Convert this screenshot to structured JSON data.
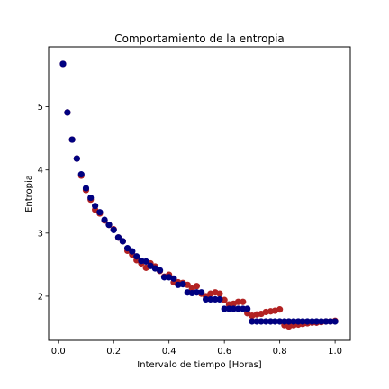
{
  "chart_data": {
    "type": "scatter",
    "title": "Comportamiento de la entropia",
    "xlabel": "Intervalo de tiempo [Horas]",
    "ylabel": "Entropia",
    "xlim": [
      -0.035,
      1.055
    ],
    "ylim": [
      1.3,
      5.95
    ],
    "xticks": [
      {
        "value": 0.0,
        "label": "0.0"
      },
      {
        "value": 0.2,
        "label": "0.2"
      },
      {
        "value": 0.4,
        "label": "0.4"
      },
      {
        "value": 0.6,
        "label": "0.6"
      },
      {
        "value": 0.8,
        "label": "0.8"
      },
      {
        "value": 1.0,
        "label": "1.0"
      }
    ],
    "yticks": [
      {
        "value": 2,
        "label": "2"
      },
      {
        "value": 3,
        "label": "3"
      },
      {
        "value": 4,
        "label": "4"
      },
      {
        "value": 5,
        "label": "5"
      }
    ],
    "grid": false,
    "legend": null,
    "series": [
      {
        "color": "#b22222",
        "x": [
          0.017,
          0.033,
          0.05,
          0.067,
          0.083,
          0.1,
          0.117,
          0.133,
          0.15,
          0.167,
          0.183,
          0.2,
          0.217,
          0.233,
          0.25,
          0.267,
          0.283,
          0.3,
          0.317,
          0.333,
          0.35,
          0.367,
          0.383,
          0.4,
          0.417,
          0.433,
          0.45,
          0.467,
          0.483,
          0.5,
          0.517,
          0.533,
          0.55,
          0.567,
          0.583,
          0.6,
          0.617,
          0.633,
          0.65,
          0.667,
          0.683,
          0.7,
          0.717,
          0.733,
          0.75,
          0.767,
          0.783,
          0.8,
          0.817,
          0.833,
          0.85,
          0.867,
          0.883,
          0.9,
          0.917,
          0.933,
          0.95,
          0.967,
          0.983,
          1.0
        ],
        "values": [
          5.68,
          4.91,
          4.48,
          4.18,
          3.91,
          3.68,
          3.53,
          3.37,
          3.31,
          3.2,
          3.13,
          3.06,
          2.93,
          2.87,
          2.72,
          2.66,
          2.57,
          2.52,
          2.45,
          2.52,
          2.47,
          2.4,
          2.31,
          2.34,
          2.22,
          2.22,
          2.21,
          2.18,
          2.12,
          2.16,
          2.04,
          2.0,
          2.04,
          2.06,
          2.04,
          1.94,
          1.87,
          1.88,
          1.91,
          1.91,
          1.73,
          1.69,
          1.71,
          1.72,
          1.75,
          1.76,
          1.77,
          1.79,
          1.54,
          1.52,
          1.54,
          1.55,
          1.56,
          1.57,
          1.58,
          1.58,
          1.59,
          1.6,
          1.6,
          1.61
        ]
      },
      {
        "color": "#000080",
        "x": [
          0.017,
          0.033,
          0.05,
          0.067,
          0.083,
          0.1,
          0.117,
          0.133,
          0.15,
          0.167,
          0.183,
          0.2,
          0.217,
          0.233,
          0.25,
          0.267,
          0.283,
          0.3,
          0.317,
          0.333,
          0.35,
          0.367,
          0.383,
          0.4,
          0.417,
          0.433,
          0.45,
          0.467,
          0.483,
          0.5,
          0.517,
          0.533,
          0.55,
          0.567,
          0.583,
          0.6,
          0.617,
          0.633,
          0.65,
          0.667,
          0.683,
          0.7,
          0.717,
          0.733,
          0.75,
          0.767,
          0.783,
          0.8,
          0.817,
          0.833,
          0.85,
          0.867,
          0.883,
          0.9,
          0.917,
          0.933,
          0.95,
          0.967,
          0.983,
          1.0
        ],
        "values": [
          5.68,
          4.91,
          4.48,
          4.18,
          3.93,
          3.71,
          3.56,
          3.43,
          3.33,
          3.21,
          3.13,
          3.05,
          2.93,
          2.87,
          2.76,
          2.71,
          2.63,
          2.56,
          2.55,
          2.48,
          2.44,
          2.41,
          2.3,
          2.3,
          2.28,
          2.18,
          2.19,
          2.06,
          2.05,
          2.06,
          2.06,
          1.95,
          1.95,
          1.95,
          1.95,
          1.8,
          1.8,
          1.8,
          1.8,
          1.8,
          1.8,
          1.6,
          1.6,
          1.6,
          1.6,
          1.6,
          1.6,
          1.6,
          1.6,
          1.6,
          1.6,
          1.6,
          1.6,
          1.6,
          1.6,
          1.6,
          1.6,
          1.6,
          1.6,
          1.6
        ]
      }
    ]
  }
}
